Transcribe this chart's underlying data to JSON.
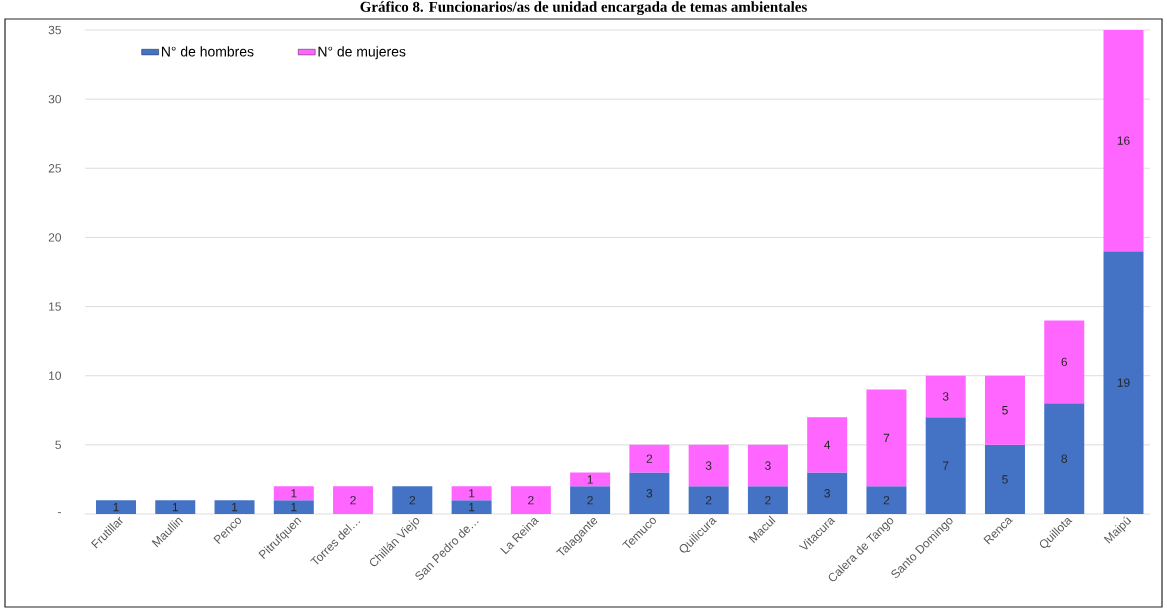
{
  "chart_data": {
    "type": "bar",
    "title": "Gráfico 8. Funcionarios/as de unidad encargada de temas ambientales",
    "categories": [
      "Frutillar",
      "Maullin",
      "Penco",
      "Pitrufquen",
      "Torres del…",
      "Chillán Viejo",
      "San Pedro de…",
      "La Reina",
      "Talagante",
      "Temuco",
      "Quilicura",
      "Macul",
      "Vitacura",
      "Calera de Tango",
      "Santo Domingo",
      "Renca",
      "Quillota",
      "Maipú"
    ],
    "series": [
      {
        "name": "N° de hombres",
        "color": "#4472c4",
        "values": [
          1,
          1,
          1,
          1,
          null,
          2,
          1,
          null,
          2,
          3,
          2,
          2,
          3,
          2,
          7,
          5,
          8,
          19
        ]
      },
      {
        "name": "N° de mujeres",
        "color": "#ff66ff",
        "values": [
          null,
          null,
          null,
          1,
          2,
          null,
          1,
          2,
          1,
          2,
          3,
          3,
          4,
          7,
          3,
          5,
          6,
          16
        ]
      }
    ],
    "stacked": true,
    "ylim": [
      0,
      35
    ],
    "yticks": [
      {
        "value": 0,
        "label": "-"
      },
      5,
      10,
      15,
      20,
      25,
      30,
      35
    ],
    "grid": "y",
    "legend": "top left",
    "data_labels": true
  }
}
